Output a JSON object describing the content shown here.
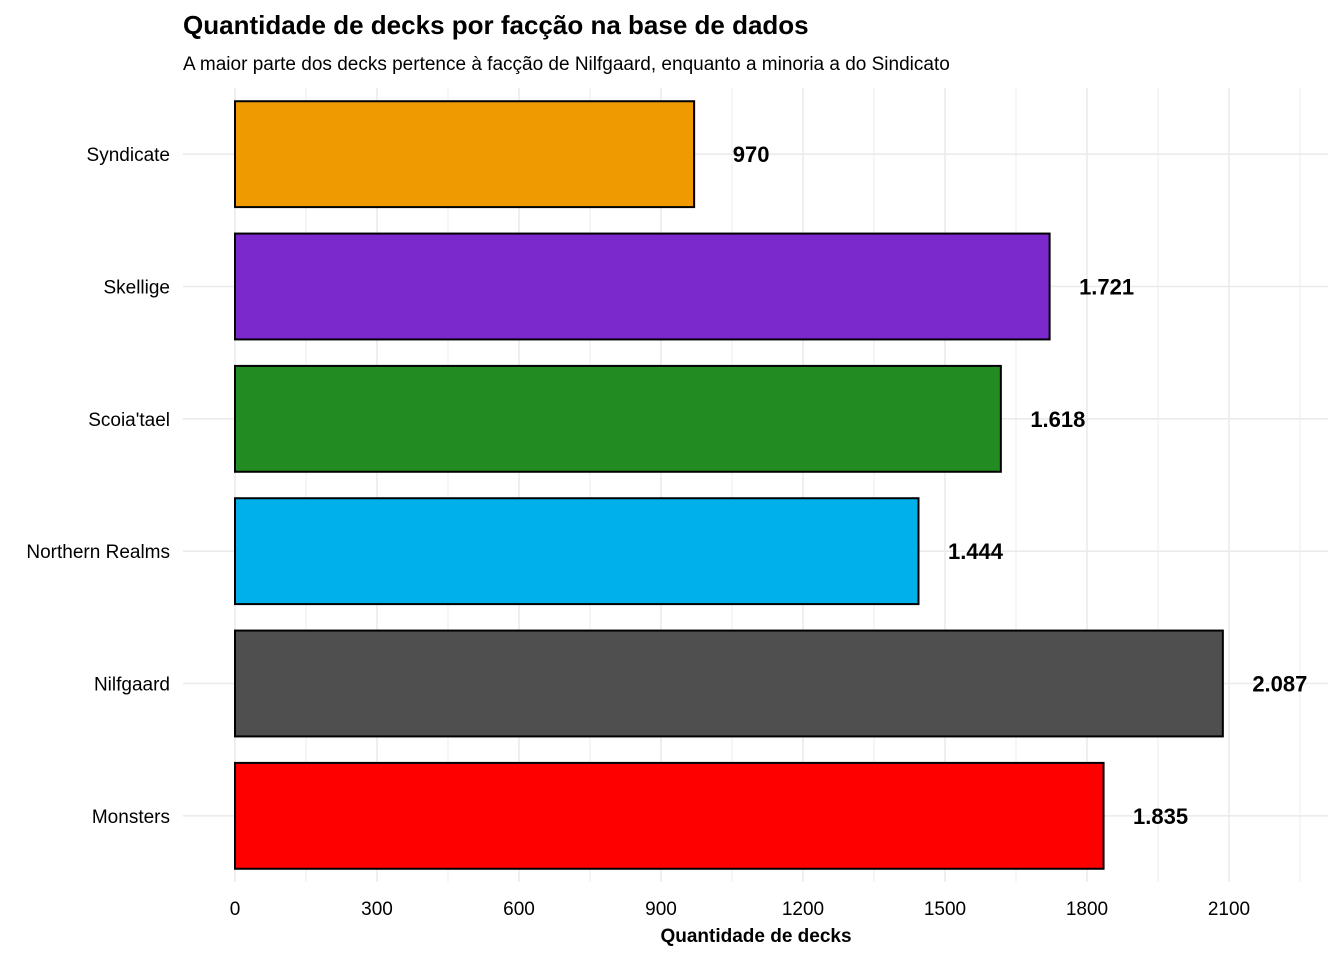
{
  "chart_data": {
    "type": "bar",
    "orientation": "horizontal",
    "title": "Quantidade de decks por facção na base de dados",
    "subtitle": "A maior parte dos decks pertence à facção de Nilfgaard, enquanto a minoria a do Sindicato",
    "xlabel": "Quantidade de decks",
    "ylabel": "",
    "xlim": [
      0,
      2250
    ],
    "x_ticks": [
      0,
      300,
      600,
      900,
      1200,
      1500,
      1800,
      2100
    ],
    "grid": true,
    "categories": [
      "Syndicate",
      "Skellige",
      "Scoia'tael",
      "Northern Realms",
      "Nilfgaard",
      "Monsters"
    ],
    "values": [
      970,
      1721,
      1618,
      1444,
      2087,
      1835
    ],
    "data_labels": [
      "970",
      "1.721",
      "1.618",
      "1.444",
      "2.087",
      "1.835"
    ],
    "colors": [
      "#EE9A00",
      "#7B28CC",
      "#228B22",
      "#00B0EB",
      "#4F4F4F",
      "#FF0000"
    ]
  }
}
